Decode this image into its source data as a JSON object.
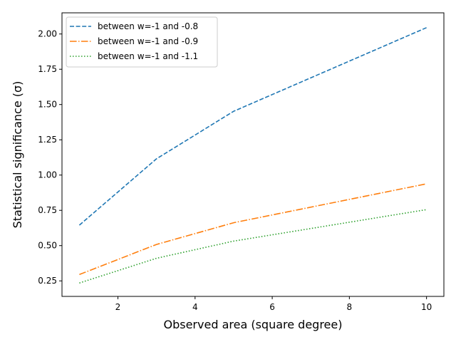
{
  "chart_data": {
    "type": "line",
    "title": "",
    "xlabel": "Observed area (square degree)",
    "ylabel": "Statistical significance (σ)",
    "xlim": [
      0.55,
      10.45
    ],
    "ylim": [
      0.14,
      2.15
    ],
    "x_ticks": [
      2,
      4,
      6,
      8,
      10
    ],
    "y_ticks": [
      0.25,
      0.5,
      0.75,
      1.0,
      1.25,
      1.5,
      1.75,
      2.0
    ],
    "x_tick_labels": [
      "2",
      "4",
      "6",
      "8",
      "10"
    ],
    "y_tick_labels": [
      "0.25",
      "0.50",
      "0.75",
      "1.00",
      "1.25",
      "1.50",
      "1.75",
      "2.00"
    ],
    "grid": false,
    "legend_position": "top-left",
    "series": [
      {
        "name": "between w=-1 and -0.8",
        "color": "#1f77b4",
        "dash": "dashed",
        "x": [
          1,
          3,
          5,
          10
        ],
        "y": [
          0.645,
          1.115,
          1.452,
          2.045
        ]
      },
      {
        "name": "between w=-1 and -0.9",
        "color": "#ff7f0e",
        "dash": "dashdot",
        "x": [
          1,
          3,
          5,
          10
        ],
        "y": [
          0.295,
          0.508,
          0.662,
          0.938
        ]
      },
      {
        "name": "between w=-1 and -1.1",
        "color": "#2ca02c",
        "dash": "dotted",
        "x": [
          1,
          3,
          5,
          10
        ],
        "y": [
          0.235,
          0.41,
          0.532,
          0.755
        ]
      }
    ]
  }
}
